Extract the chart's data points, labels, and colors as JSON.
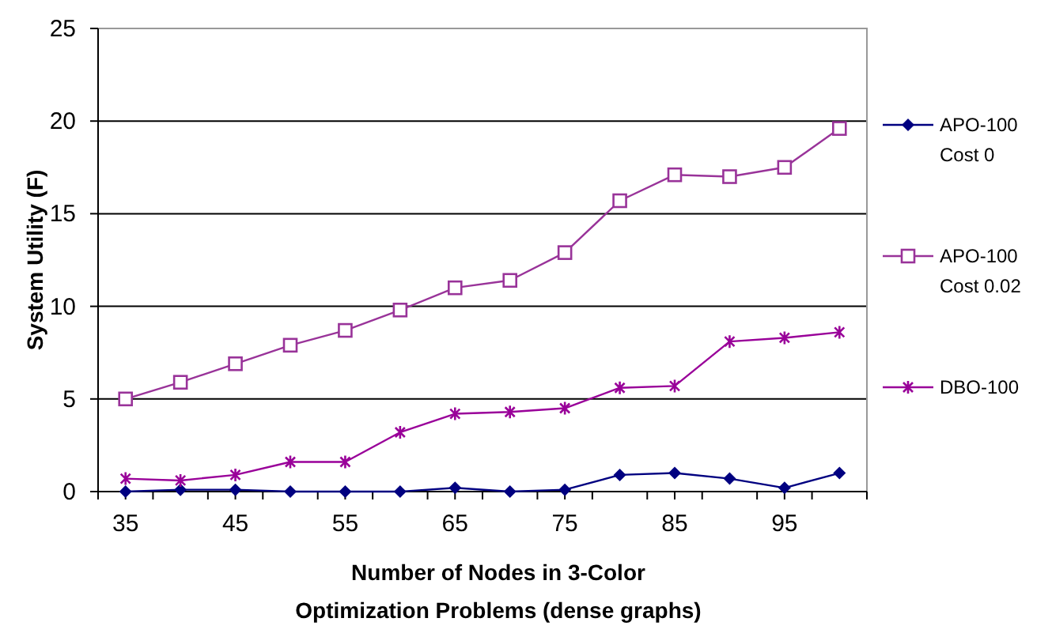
{
  "chart_data": {
    "type": "line",
    "xlabel": "Number of Nodes in 3-Color Optimization Problems (dense graphs)",
    "ylabel": "System Utility (F)",
    "x": [
      35,
      40,
      45,
      50,
      55,
      60,
      65,
      70,
      75,
      80,
      85,
      90,
      95,
      100
    ],
    "xlim": [
      32.5,
      102.5
    ],
    "xticks": [
      {
        "value": 32.5,
        "label": null
      },
      35,
      {
        "value": 37.5,
        "label": null
      },
      {
        "value": 42.5,
        "label": null
      },
      45,
      {
        "value": 47.5,
        "label": null
      },
      {
        "value": 52.5,
        "label": null
      },
      55,
      {
        "value": 57.5,
        "label": null
      },
      {
        "value": 62.5,
        "label": null
      },
      65,
      {
        "value": 67.5,
        "label": null
      },
      {
        "value": 72.5,
        "label": null
      },
      75,
      {
        "value": 77.5,
        "label": null
      },
      {
        "value": 82.5,
        "label": null
      },
      85,
      {
        "value": 87.5,
        "label": null
      },
      {
        "value": 92.5,
        "label": null
      },
      95,
      {
        "value": 97.5,
        "label": null
      },
      {
        "value": 102.5,
        "label": null
      }
    ],
    "ylim": [
      0,
      25
    ],
    "yticks": [
      0,
      5,
      10,
      15,
      20,
      25
    ],
    "grid": "y",
    "legend": "right",
    "series": [
      {
        "name": "APO-100 Cost 0",
        "color": "#000080",
        "marker": "diamond",
        "values": [
          0,
          0.1,
          0.1,
          0,
          0,
          0,
          0.2,
          0,
          0.1,
          0.9,
          1.0,
          0.7,
          0.2,
          1.0
        ]
      },
      {
        "name": "APO-100 Cost 0.02",
        "color": "#993399",
        "marker": "square",
        "values": [
          5.0,
          5.9,
          6.9,
          7.9,
          8.7,
          9.8,
          11.0,
          11.4,
          12.9,
          15.7,
          17.1,
          17.0,
          17.5,
          19.6
        ]
      },
      {
        "name": "DBO-100",
        "color": "#990099",
        "marker": "cross",
        "values": [
          0.7,
          0.6,
          0.9,
          1.6,
          1.6,
          3.2,
          4.2,
          4.3,
          4.5,
          5.6,
          5.7,
          8.1,
          8.3,
          8.6
        ]
      }
    ]
  }
}
